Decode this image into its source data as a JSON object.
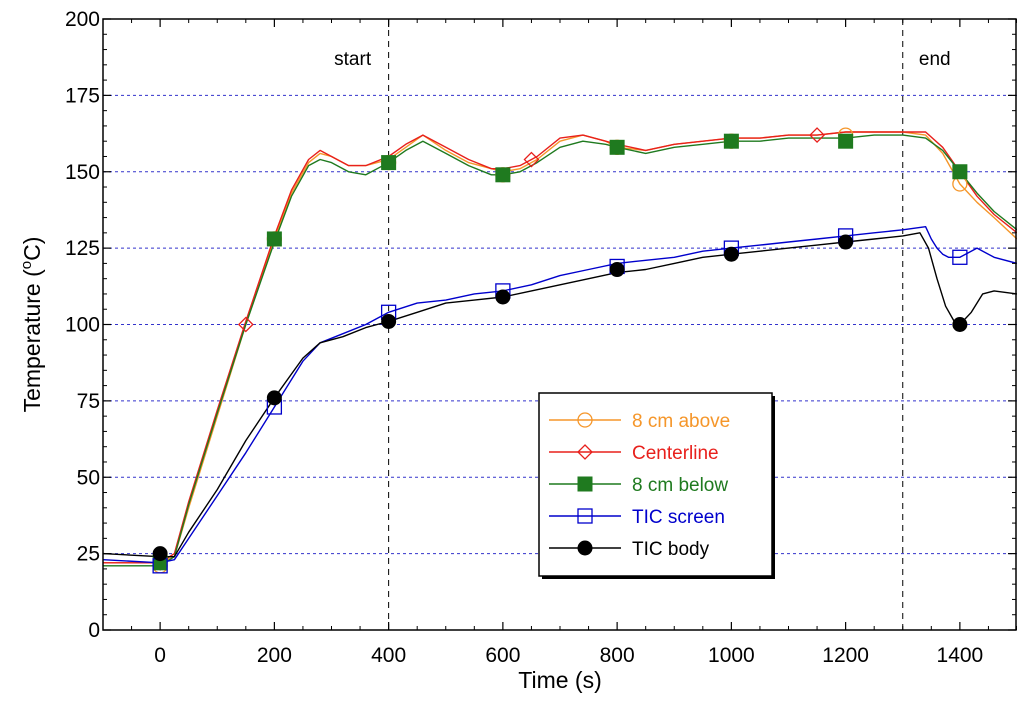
{
  "chart_data": {
    "type": "line",
    "xlabel": "Time (s)",
    "ylabel_main": "Temperature (",
    "ylabel_sup": "o",
    "ylabel_end": "C)",
    "xlim": [
      -100,
      1500
    ],
    "ylim": [
      0,
      200
    ],
    "xticks": [
      0,
      200,
      400,
      600,
      800,
      1000,
      1200,
      1400
    ],
    "yticks": [
      0,
      25,
      50,
      75,
      100,
      125,
      150,
      175,
      200
    ],
    "grid": "horizontal dotted, blue",
    "legend_placement": "center-right",
    "annotations": [
      {
        "text": "start",
        "x": 400
      },
      {
        "text": "end",
        "x": 1300
      }
    ],
    "series": [
      {
        "name": "8 cm above",
        "color": "#f5962a",
        "marker": "circle-open",
        "x": [
          -100,
          0,
          25,
          50,
          100,
          150,
          200,
          230,
          260,
          280,
          300,
          330,
          360,
          400,
          430,
          460,
          500,
          540,
          580,
          600,
          630,
          660,
          700,
          740,
          780,
          800,
          850,
          900,
          950,
          1000,
          1050,
          1100,
          1150,
          1200,
          1250,
          1300,
          1340,
          1370,
          1400,
          1430,
          1460,
          1500
        ],
        "y": [
          22,
          22,
          24,
          40,
          70,
          100,
          128,
          143,
          153,
          156,
          155,
          152,
          152,
          154,
          158,
          162,
          157,
          153,
          151,
          150,
          151,
          154,
          160,
          162,
          160,
          158,
          157,
          159,
          160,
          161,
          161,
          162,
          162,
          163,
          163,
          163,
          162,
          156,
          146,
          140,
          135,
          128
        ],
        "marker_x": [
          0,
          200,
          400,
          600,
          800,
          1000,
          1200,
          1400
        ],
        "marker_y": [
          21,
          128,
          153,
          149,
          158,
          160,
          162,
          146
        ]
      },
      {
        "name": "Centerline",
        "color": "#e8201c",
        "marker": "diamond-open",
        "x": [
          -100,
          0,
          25,
          50,
          100,
          150,
          200,
          230,
          260,
          280,
          300,
          330,
          360,
          400,
          430,
          460,
          500,
          540,
          580,
          600,
          630,
          660,
          700,
          740,
          780,
          800,
          850,
          900,
          950,
          1000,
          1050,
          1100,
          1150,
          1200,
          1250,
          1300,
          1340,
          1370,
          1400,
          1430,
          1460,
          1500
        ],
        "y": [
          22,
          22,
          25,
          42,
          72,
          101,
          129,
          144,
          154,
          157,
          155,
          152,
          152,
          155,
          159,
          162,
          158,
          154,
          151,
          151,
          152,
          155,
          161,
          162,
          160,
          159,
          157,
          159,
          160,
          161,
          161,
          162,
          162,
          163,
          163,
          163,
          163,
          158,
          150,
          142,
          136,
          130
        ],
        "marker_x": [
          0,
          150,
          650,
          1150
        ],
        "marker_y": [
          22,
          100,
          154,
          162
        ]
      },
      {
        "name": "8 cm below",
        "color": "#1f7a1f",
        "marker": "square-filled",
        "x": [
          -100,
          0,
          25,
          50,
          100,
          150,
          200,
          230,
          260,
          280,
          300,
          330,
          360,
          400,
          430,
          460,
          500,
          540,
          580,
          600,
          630,
          660,
          700,
          740,
          780,
          800,
          850,
          900,
          950,
          1000,
          1050,
          1100,
          1150,
          1200,
          1250,
          1300,
          1340,
          1370,
          1400,
          1430,
          1460,
          1500
        ],
        "y": [
          21,
          21,
          24,
          41,
          71,
          100,
          127,
          142,
          152,
          154,
          153,
          150,
          149,
          153,
          157,
          160,
          156,
          152,
          149,
          149,
          150,
          153,
          158,
          160,
          159,
          158,
          156,
          158,
          159,
          160,
          160,
          161,
          161,
          161,
          162,
          162,
          161,
          157,
          150,
          143,
          137,
          131
        ],
        "marker_x": [
          0,
          200,
          400,
          600,
          800,
          1000,
          1200,
          1400
        ],
        "marker_y": [
          22,
          128,
          153,
          149,
          158,
          160,
          160,
          150
        ]
      },
      {
        "name": "TIC screen",
        "color": "#0000cc",
        "marker": "square-open",
        "x": [
          -100,
          0,
          25,
          50,
          100,
          150,
          200,
          250,
          280,
          320,
          360,
          400,
          450,
          500,
          550,
          600,
          650,
          700,
          750,
          800,
          850,
          900,
          950,
          1000,
          1050,
          1100,
          1150,
          1200,
          1250,
          1300,
          1340,
          1350,
          1360,
          1370,
          1380,
          1400,
          1430,
          1460,
          1500
        ],
        "y": [
          23,
          22,
          23,
          30,
          44,
          58,
          73,
          88,
          94,
          97,
          100,
          104,
          107,
          108,
          110,
          111,
          113,
          116,
          118,
          120,
          121,
          122,
          124,
          125,
          126,
          127,
          128,
          129,
          130,
          131,
          132,
          128,
          125,
          123,
          122,
          122,
          125,
          122,
          120
        ],
        "marker_x": [
          0,
          200,
          400,
          600,
          800,
          1000,
          1200,
          1400
        ],
        "marker_y": [
          21,
          73,
          104,
          111,
          119,
          125,
          129,
          122
        ]
      },
      {
        "name": "TIC body",
        "color": "#000000",
        "marker": "circle-filled",
        "x": [
          -100,
          0,
          25,
          50,
          100,
          150,
          200,
          250,
          280,
          320,
          360,
          400,
          450,
          500,
          550,
          600,
          650,
          700,
          750,
          800,
          850,
          900,
          950,
          1000,
          1050,
          1100,
          1150,
          1200,
          1250,
          1300,
          1330,
          1345,
          1360,
          1375,
          1390,
          1400,
          1420,
          1440,
          1460,
          1500
        ],
        "y": [
          25,
          24,
          24,
          32,
          46,
          62,
          76,
          89,
          94,
          96,
          99,
          101,
          104,
          107,
          108,
          109,
          111,
          113,
          115,
          117,
          118,
          120,
          122,
          123,
          124,
          125,
          126,
          127,
          128,
          129,
          130,
          125,
          115,
          106,
          101,
          100,
          104,
          110,
          111,
          110
        ],
        "marker_x": [
          0,
          200,
          400,
          600,
          800,
          1000,
          1200,
          1400
        ],
        "marker_y": [
          25,
          76,
          101,
          109,
          118,
          123,
          127,
          100
        ]
      }
    ]
  }
}
